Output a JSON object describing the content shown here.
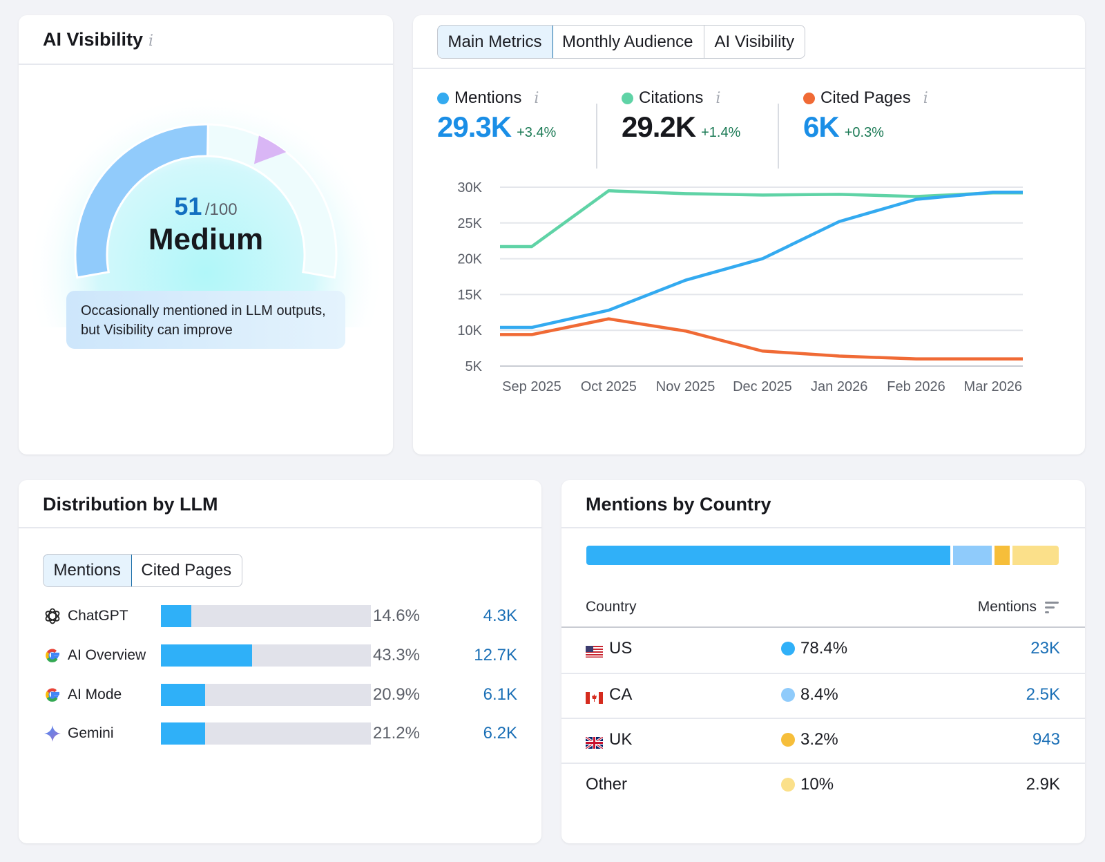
{
  "visibility": {
    "title": "AI Visibility",
    "info_icon": "i",
    "score": "51",
    "score_max": "/100",
    "score_fraction": 0.51,
    "level": "Medium",
    "description": "Occasionally mentioned in LLM outputs, but Visibility can improve"
  },
  "metrics": {
    "tabs": [
      {
        "label": "Main Metrics",
        "active": true
      },
      {
        "label": "Monthly Audience",
        "active": false
      },
      {
        "label": "AI Visibility",
        "active": false
      }
    ],
    "stats": [
      {
        "label": "Mentions",
        "value": "29.3K",
        "change": "+3.4%",
        "color": "#33aaf0",
        "value_color": "#1a8ee6"
      },
      {
        "label": "Citations",
        "value": "29.2K",
        "change": "+1.4%",
        "color": "#5fd3a6",
        "value_color": "#17181d"
      },
      {
        "label": "Cited Pages",
        "value": "6K",
        "change": "+0.3%",
        "color": "#f06a35",
        "value_color": "#1a8ee6"
      }
    ]
  },
  "chart_data": {
    "type": "line",
    "categories": [
      "Sep 2025",
      "Oct 2025",
      "Nov 2025",
      "Dec 2025",
      "Jan 2026",
      "Feb 2026",
      "Mar 2026"
    ],
    "y_ticks": [
      "5K",
      "10K",
      "15K",
      "20K",
      "25K",
      "30K"
    ],
    "ylim": [
      5000,
      30000
    ],
    "grid": true,
    "series": [
      {
        "name": "Citations",
        "color": "#5fd3a6",
        "values": [
          21700,
          29500,
          29100,
          28900,
          29000,
          28700,
          29200
        ]
      },
      {
        "name": "Mentions",
        "color": "#33aaf0",
        "values": [
          10400,
          12800,
          17000,
          20000,
          25200,
          28300,
          29300
        ]
      },
      {
        "name": "Cited Pages",
        "color": "#f06a35",
        "values": [
          9400,
          11600,
          9900,
          7100,
          6400,
          6000,
          6000
        ]
      }
    ]
  },
  "llm": {
    "title": "Distribution by LLM",
    "tabs": [
      {
        "label": "Mentions",
        "active": true
      },
      {
        "label": "Cited Pages",
        "active": false
      }
    ],
    "rows": [
      {
        "name": "ChatGPT",
        "icon": "chatgpt-icon",
        "percent": "14.6%",
        "share": 14.6,
        "value": "4.3K"
      },
      {
        "name": "AI Overview",
        "icon": "google-icon",
        "percent": "43.3%",
        "share": 43.3,
        "value": "12.7K"
      },
      {
        "name": "AI Mode",
        "icon": "google-icon",
        "percent": "20.9%",
        "share": 20.9,
        "value": "6.1K"
      },
      {
        "name": "Gemini",
        "icon": "gemini-icon",
        "percent": "21.2%",
        "share": 21.2,
        "value": "6.2K"
      }
    ]
  },
  "country": {
    "title": "Mentions by Country",
    "col_country": "Country",
    "col_mentions": "Mentions",
    "rows": [
      {
        "name": "US",
        "flag": "us-flag-icon",
        "percent": "78.4%",
        "share": 78.4,
        "value": "23K",
        "color": "#30b0f8"
      },
      {
        "name": "CA",
        "flag": "ca-flag-icon",
        "percent": "8.4%",
        "share": 8.4,
        "value": "2.5K",
        "color": "#8fcbfb"
      },
      {
        "name": "UK",
        "flag": "uk-flag-icon",
        "percent": "3.2%",
        "share": 3.2,
        "value": "943",
        "color": "#f6be3a"
      },
      {
        "name": "Other",
        "flag": "",
        "percent": "10%",
        "share": 10,
        "value": "2.9K",
        "color": "#fbe08a"
      }
    ]
  }
}
